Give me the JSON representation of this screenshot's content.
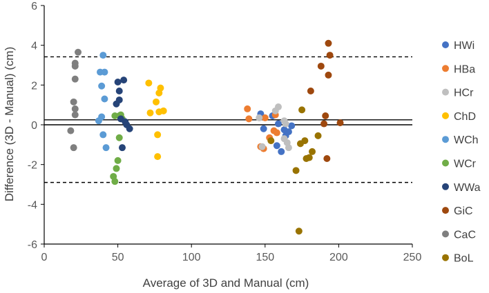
{
  "chart_data": {
    "type": "scatter",
    "title": "",
    "xlabel": "Average of 3D and Manual (cm)",
    "ylabel": "Difference (3D - Manual) (cm)",
    "xlim": [
      0,
      250
    ],
    "ylim": [
      -6,
      6
    ],
    "xticks": [
      0,
      50,
      100,
      150,
      200,
      250
    ],
    "yticks": [
      -6,
      -4,
      -2,
      0,
      2,
      4,
      6
    ],
    "grid": false,
    "legend_position": "right",
    "reference_lines": [
      {
        "name": "zero",
        "y": 0,
        "style": "solid"
      },
      {
        "name": "mean-difference",
        "y": 0.25,
        "style": "solid"
      },
      {
        "name": "upper-limit-of-agreement",
        "y": 3.42,
        "style": "dashed"
      },
      {
        "name": "lower-limit-of-agreement",
        "y": -2.9,
        "style": "dashed"
      }
    ],
    "series": [
      {
        "name": "HWi",
        "color": "#4472C4",
        "points": [
          [
            147,
            0.55
          ],
          [
            149,
            -0.2
          ],
          [
            155,
            0.45
          ],
          [
            158,
            -1.05
          ],
          [
            159,
            0.05
          ],
          [
            161,
            -1.35
          ],
          [
            163,
            -0.25
          ],
          [
            164,
            -0.55
          ],
          [
            166,
            -0.35
          ],
          [
            168,
            -0.05
          ]
        ]
      },
      {
        "name": "HBa",
        "color": "#ED7D31",
        "points": [
          [
            138,
            0.8
          ],
          [
            139,
            0.3
          ],
          [
            147,
            -1.1
          ],
          [
            149,
            -1.2
          ],
          [
            150,
            0.35
          ],
          [
            153,
            -0.65
          ],
          [
            156,
            -0.3
          ],
          [
            157,
            0.5
          ],
          [
            158,
            -0.4
          ]
        ]
      },
      {
        "name": "HCr",
        "color": "#BFBFBF",
        "points": [
          [
            146,
            0.35
          ],
          [
            148,
            -1.1
          ],
          [
            157,
            0.7
          ],
          [
            159,
            0.9
          ],
          [
            163,
            0.2
          ],
          [
            163,
            -0.7
          ],
          [
            165,
            -0.9
          ],
          [
            166,
            -1.15
          ],
          [
            164,
            0.05
          ]
        ]
      },
      {
        "name": "ChD",
        "color": "#FFC000",
        "points": [
          [
            71,
            2.1
          ],
          [
            72,
            0.6
          ],
          [
            76,
            1.15
          ],
          [
            77,
            -0.5
          ],
          [
            77,
            -1.6
          ],
          [
            78,
            1.6
          ],
          [
            78,
            0.65
          ],
          [
            79,
            1.85
          ],
          [
            81,
            0.7
          ]
        ]
      },
      {
        "name": "WCh",
        "color": "#5B9BD5",
        "points": [
          [
            37,
            0.2
          ],
          [
            38,
            2.65
          ],
          [
            39,
            1.95
          ],
          [
            39,
            0.4
          ],
          [
            40,
            -0.5
          ],
          [
            40,
            3.5
          ],
          [
            41,
            2.65
          ],
          [
            41,
            1.3
          ],
          [
            42,
            -1.15
          ]
        ]
      },
      {
        "name": "WCr",
        "color": "#70AD47",
        "points": [
          [
            47,
            -2.6
          ],
          [
            48,
            -2.85
          ],
          [
            48,
            0.45
          ],
          [
            49,
            -2.2
          ],
          [
            50,
            -1.8
          ],
          [
            51,
            0.45
          ],
          [
            51,
            -0.65
          ],
          [
            52,
            0.5
          ],
          [
            53,
            0.3
          ]
        ]
      },
      {
        "name": "WWa",
        "color": "#264478",
        "points": [
          [
            49,
            1.05
          ],
          [
            50,
            2.15
          ],
          [
            51,
            1.7
          ],
          [
            51,
            1.25
          ],
          [
            52,
            0.3
          ],
          [
            53,
            -1.15
          ],
          [
            54,
            2.25
          ],
          [
            55,
            0.15
          ],
          [
            56,
            0
          ],
          [
            58,
            -0.2
          ]
        ]
      },
      {
        "name": "GiC",
        "color": "#9E480E",
        "points": [
          [
            181,
            1.7
          ],
          [
            188,
            2.95
          ],
          [
            190,
            0.05
          ],
          [
            191,
            0.45
          ],
          [
            192,
            -1.7
          ],
          [
            193,
            4.1
          ],
          [
            193,
            2.5
          ],
          [
            194,
            3.5
          ],
          [
            201,
            0.1
          ]
        ]
      },
      {
        "name": "CaC",
        "color": "#7F7F7F",
        "points": [
          [
            18,
            -0.3
          ],
          [
            20,
            -1.15
          ],
          [
            20,
            1.15
          ],
          [
            21,
            0.5
          ],
          [
            21,
            0.8
          ],
          [
            21,
            2.3
          ],
          [
            21,
            2.95
          ],
          [
            21,
            3.1
          ],
          [
            23,
            3.65
          ]
        ]
      },
      {
        "name": "BoL",
        "color": "#997300",
        "points": [
          [
            154,
            -0.8
          ],
          [
            171,
            -2.3
          ],
          [
            173,
            -5.35
          ],
          [
            174,
            -0.95
          ],
          [
            175,
            0.75
          ],
          [
            177,
            -0.8
          ],
          [
            178,
            -1.7
          ],
          [
            180,
            -1.65
          ],
          [
            182,
            -1.35
          ],
          [
            186,
            -0.55
          ]
        ]
      }
    ]
  }
}
